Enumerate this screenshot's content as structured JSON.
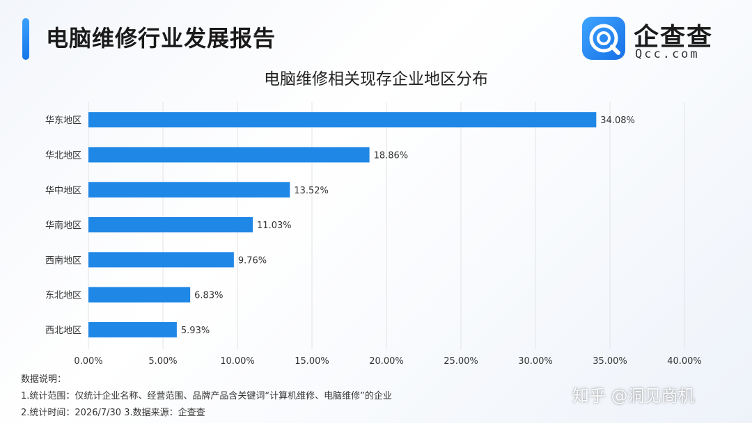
{
  "header": {
    "title": "电脑维修行业发展报告",
    "logo_cn": "企查查",
    "logo_en": "Qcc.com"
  },
  "chart_data": {
    "type": "bar",
    "orientation": "horizontal",
    "title": "电脑维修相关现存企业地区分布",
    "categories": [
      "华东地区",
      "华北地区",
      "华中地区",
      "华南地区",
      "西南地区",
      "东北地区",
      "西北地区"
    ],
    "values": [
      34.08,
      18.86,
      13.52,
      11.03,
      9.76,
      6.83,
      5.93
    ],
    "value_labels": [
      "34.08%",
      "18.86%",
      "13.52%",
      "11.03%",
      "9.76%",
      "6.83%",
      "5.93%"
    ],
    "xlim": [
      0,
      40
    ],
    "x_ticks": [
      "0.00%",
      "5.00%",
      "10.00%",
      "15.00%",
      "20.00%",
      "25.00%",
      "30.00%",
      "35.00%",
      "40.00%"
    ],
    "grid": true,
    "bar_color": "#1f87e5"
  },
  "notes": {
    "heading": "数据说明：",
    "line1": "1.统计范围：仅统计企业名称、经营范围、品牌产品含关键词“计算机维修、电脑维修”的企业",
    "line2": "2.统计时间：2026/7/30 3.数据来源：企查查"
  },
  "watermark": "知乎 @洞见商机",
  "colors": {
    "accent": "#1676e8",
    "bar": "#1f87e5",
    "grid": "#e3e3e3"
  }
}
